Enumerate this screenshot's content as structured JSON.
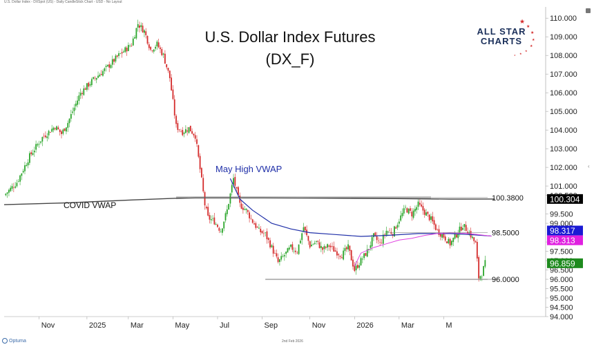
{
  "header": {
    "caption": "U.S. Dollar Index - DXSpot (US) - Daily CandleStick Chart - USD - No Layout"
  },
  "footer": {
    "date": "2nd Feb 2026",
    "brand": "Optuma"
  },
  "logo": {
    "line1": "ALL STAR",
    "line2": "CHARTS",
    "color_primary": "#1a2f5a",
    "color_stars": "#d42a2a"
  },
  "chart_data": {
    "type": "candlestick",
    "title": "U.S. Dollar Index Futures",
    "subtitle": "(DX_F)",
    "x_labels": [
      "Nov",
      "2025",
      "Mar",
      "May",
      "Jul",
      "Sep",
      "Nov",
      "2026",
      "Mar",
      "M"
    ],
    "y_ticks": [
      "110.000",
      "109.000",
      "108.000",
      "107.000",
      "106.000",
      "105.000",
      "104.000",
      "103.000",
      "102.000",
      "101.000",
      "100.500",
      "99.500",
      "99.000",
      "98.000",
      "97.500",
      "97.000",
      "96.500",
      "96.000",
      "95.500",
      "95.000",
      "94.500",
      "94.000"
    ],
    "ylim": [
      94.0,
      110.6
    ],
    "close_path": [
      [
        0,
        100.5
      ],
      [
        4,
        101.2
      ],
      [
        8,
        102.6
      ],
      [
        12,
        103.6
      ],
      [
        16,
        104.2
      ],
      [
        18,
        103.8
      ],
      [
        20,
        104.4
      ],
      [
        24,
        106.0
      ],
      [
        28,
        106.7
      ],
      [
        32,
        107.3
      ],
      [
        36,
        108.0
      ],
      [
        40,
        108.6
      ],
      [
        42,
        109.7
      ],
      [
        44,
        109.3
      ],
      [
        46,
        108.3
      ],
      [
        48,
        108.6
      ],
      [
        50,
        108.0
      ],
      [
        52,
        106.8
      ],
      [
        54,
        104.2
      ],
      [
        56,
        103.9
      ],
      [
        58,
        104.1
      ],
      [
        60,
        103.7
      ],
      [
        62,
        101.3
      ],
      [
        63,
        100.0
      ],
      [
        64,
        99.3
      ],
      [
        66,
        99.1
      ],
      [
        68,
        98.6
      ],
      [
        70,
        99.7
      ],
      [
        72,
        101.4
      ],
      [
        74,
        100.0
      ],
      [
        76,
        99.7
      ],
      [
        78,
        99.1
      ],
      [
        80,
        98.6
      ],
      [
        82,
        98.4
      ],
      [
        84,
        97.7
      ],
      [
        86,
        96.9
      ],
      [
        88,
        97.3
      ],
      [
        90,
        97.7
      ],
      [
        92,
        97.5
      ],
      [
        94,
        98.8
      ],
      [
        96,
        97.8
      ],
      [
        98,
        98.0
      ],
      [
        100,
        97.6
      ],
      [
        102,
        97.8
      ],
      [
        104,
        97.5
      ],
      [
        106,
        97.3
      ],
      [
        108,
        97.7
      ],
      [
        110,
        96.5
      ],
      [
        112,
        97.0
      ],
      [
        114,
        97.5
      ],
      [
        116,
        98.3
      ],
      [
        118,
        97.9
      ],
      [
        120,
        98.6
      ],
      [
        122,
        98.5
      ],
      [
        124,
        99.2
      ],
      [
        126,
        99.8
      ],
      [
        128,
        99.5
      ],
      [
        130,
        100.0
      ],
      [
        132,
        99.6
      ],
      [
        134,
        99.2
      ],
      [
        136,
        98.6
      ],
      [
        138,
        98.3
      ],
      [
        140,
        97.9
      ],
      [
        142,
        98.4
      ],
      [
        144,
        98.9
      ],
      [
        146,
        98.5
      ],
      [
        148,
        97.9
      ],
      [
        149,
        96.1
      ],
      [
        150,
        96.3
      ],
      [
        151,
        96.859
      ]
    ],
    "x_total": 170,
    "labels_x": [
      11,
      26,
      39,
      53,
      67,
      81,
      96,
      110,
      124,
      138
    ],
    "annotations": [
      {
        "text": "May High VWAP",
        "color": "#1f2fa8"
      },
      {
        "text": "COVID VWAP",
        "color": "#111111"
      }
    ],
    "levels": [
      {
        "value": 100.38,
        "label": "100.3800"
      },
      {
        "value": 98.5,
        "label": "98.5000"
      },
      {
        "value": 96.0,
        "label": "96.0000"
      }
    ],
    "price_tags": [
      {
        "label": "100.304",
        "value": 100.304,
        "bg": "#000000",
        "fg": "#ffffff"
      },
      {
        "label": "98.317",
        "value": 98.317,
        "bg": "#1a1ad4",
        "fg": "#ffffff"
      },
      {
        "label": "98.313",
        "value": 98.313,
        "bg": "#e020e0",
        "fg": "#ffffff"
      },
      {
        "label": "96.859",
        "value": 96.859,
        "bg": "#1e8a1e",
        "fg": "#ffffff"
      }
    ],
    "colors": {
      "up": "#2aa52a",
      "down": "#d42a2a",
      "covid_vwap": "#444444",
      "may_vwap": "#1f2fa8",
      "pink_vwap": "#e040e0",
      "zone": "#c8c8c8"
    }
  }
}
